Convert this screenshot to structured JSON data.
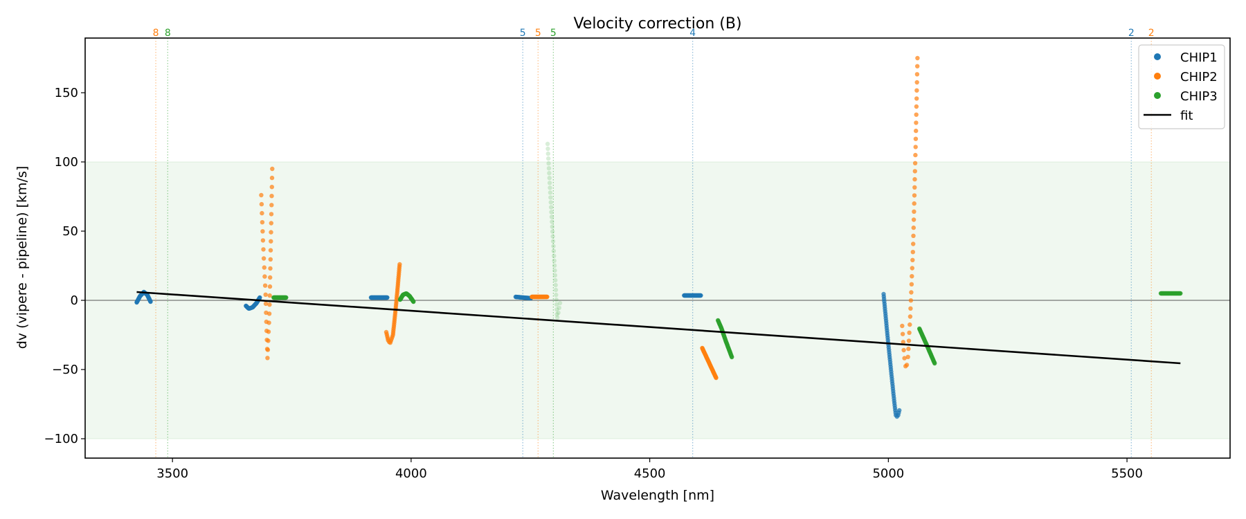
{
  "chart_data": {
    "type": "scatter",
    "title": "Velocity correction (B)",
    "xlabel": "Wavelength [nm]",
    "ylabel": "dv (vipere - pipeline) [km/s]",
    "xlim": [
      3317,
      5716
    ],
    "ylim": [
      -114,
      189.5
    ],
    "xticks": [
      3500,
      4000,
      4500,
      5000,
      5500
    ],
    "xtick_labels": [
      "3500",
      "4000",
      "4500",
      "5000",
      "5500"
    ],
    "yticks": [
      -100,
      -50,
      0,
      50,
      100,
      150
    ],
    "ytick_labels": [
      "−100",
      "−50",
      "0",
      "50",
      "100",
      "150"
    ],
    "grid": false,
    "shaded_band": {
      "ymin": -100,
      "ymax": 100,
      "color": "#2ca02c"
    },
    "zero_line": 0,
    "legend": {
      "placement": "top-right",
      "entries": [
        {
          "label": "CHIP1",
          "color": "#1f77b4",
          "kind": "marker"
        },
        {
          "label": "CHIP2",
          "color": "#ff7f0e",
          "kind": "marker"
        },
        {
          "label": "CHIP3",
          "color": "#2ca02c",
          "kind": "marker"
        },
        {
          "label": "fit",
          "color": "#000000",
          "kind": "line"
        }
      ]
    },
    "order_markers": [
      {
        "x": 3465,
        "label": "8",
        "color": "#ff7f0e"
      },
      {
        "x": 3490,
        "label": "8",
        "color": "#2ca02c"
      },
      {
        "x": 4234,
        "label": "5",
        "color": "#1f77b4"
      },
      {
        "x": 4266,
        "label": "5",
        "color": "#ff7f0e"
      },
      {
        "x": 4298,
        "label": "5",
        "color": "#2ca02c"
      },
      {
        "x": 4590,
        "label": "4",
        "color": "#1f77b4"
      },
      {
        "x": 5509,
        "label": "2",
        "color": "#1f77b4"
      },
      {
        "x": 5551,
        "label": "2",
        "color": "#ff7f0e"
      }
    ],
    "fit": {
      "x": [
        3425,
        5612
      ],
      "y": [
        6,
        -45.5
      ]
    },
    "series": [
      {
        "name": "CHIP1",
        "color": "#1f77b4",
        "segments": [
          {
            "x": [
              3425,
              3432,
              3440,
              3447,
              3454
            ],
            "y": [
              -1.5,
              3,
              6,
              4,
              -1
            ],
            "n": 40,
            "alpha": 0.9
          },
          {
            "x": [
              3654,
              3660,
              3668,
              3676,
              3683
            ],
            "y": [
              -4,
              -6,
              -5,
              -2,
              2
            ],
            "n": 40,
            "alpha": 0.9
          },
          {
            "x": [
              3916,
              3950
            ],
            "y": [
              2,
              2
            ],
            "n": 40,
            "alpha": 0.9
          },
          {
            "x": [
              4219,
              4251
            ],
            "y": [
              2.5,
              1.5
            ],
            "n": 40,
            "alpha": 0.75
          },
          {
            "x": [
              4572,
              4607
            ],
            "y": [
              3.5,
              3.5
            ],
            "n": 40,
            "alpha": 0.85
          },
          {
            "x": [
              4990,
              4998,
              5006,
              5012,
              5016,
              5020,
              5023
            ],
            "y": [
              4.5,
              -25,
              -52,
              -72,
              -84,
              -84,
              -79.5
            ],
            "n": 55,
            "alpha": 0.75
          }
        ]
      },
      {
        "name": "CHIP2",
        "color": "#ff7f0e",
        "segments": [
          {
            "x": [
              3686,
              3690,
              3695,
              3699,
              3703,
              3706,
              3709
            ],
            "y": [
              76,
              40,
              5,
              -42,
              -10,
              40,
              95
            ],
            "n": 40,
            "alpha": 0.7
          },
          {
            "x": [
              3948,
              3952,
              3956,
              3962,
              3968,
              3972,
              3976
            ],
            "y": [
              -23,
              -29,
              -31,
              -25,
              -5,
              10,
              26
            ],
            "n": 45,
            "alpha": 0.75
          },
          {
            "x": [
              4253,
              4285
            ],
            "y": [
              2.5,
              2.5
            ],
            "n": 35,
            "alpha": 0.85
          },
          {
            "x": [
              4610,
              4639
            ],
            "y": [
              -34.5,
              -56
            ],
            "n": 35,
            "alpha": 0.9
          },
          {
            "x": [
              5029,
              5033,
              5037,
              5041,
              5046,
              5052,
              5057,
              5061
            ],
            "y": [
              -18.5,
              -40,
              -50,
              -42,
              -10,
              40,
              110,
              175
            ],
            "n": 45,
            "alpha": 0.7
          }
        ]
      },
      {
        "name": "CHIP3",
        "color": "#2ca02c",
        "segments": [
          {
            "x": [
              3712,
              3738
            ],
            "y": [
              2,
              2
            ],
            "n": 30,
            "alpha": 0.9
          },
          {
            "x": [
              3977,
              3983,
              3990,
              3997,
              4005
            ],
            "y": [
              0.5,
              4,
              5,
              3,
              -1
            ],
            "n": 35,
            "alpha": 0.9
          },
          {
            "x": [
              4286,
              4292,
              4298,
              4303,
              4306,
              4309,
              4312
            ],
            "y": [
              113,
              75,
              40,
              10,
              -13,
              -8,
              -2
            ],
            "n": 40,
            "alpha": 0.18
          },
          {
            "x": [
              4643,
              4650,
              4660,
              4672
            ],
            "y": [
              -14.5,
              -20,
              -30,
              -41
            ],
            "n": 35,
            "alpha": 0.9
          },
          {
            "x": [
              5065,
              5080,
              5097
            ],
            "y": [
              -20.5,
              -32,
              -45.5
            ],
            "n": 35,
            "alpha": 0.9
          },
          {
            "x": [
              5571,
              5612
            ],
            "y": [
              5,
              5
            ],
            "n": 30,
            "alpha": 0.85
          }
        ]
      }
    ]
  }
}
